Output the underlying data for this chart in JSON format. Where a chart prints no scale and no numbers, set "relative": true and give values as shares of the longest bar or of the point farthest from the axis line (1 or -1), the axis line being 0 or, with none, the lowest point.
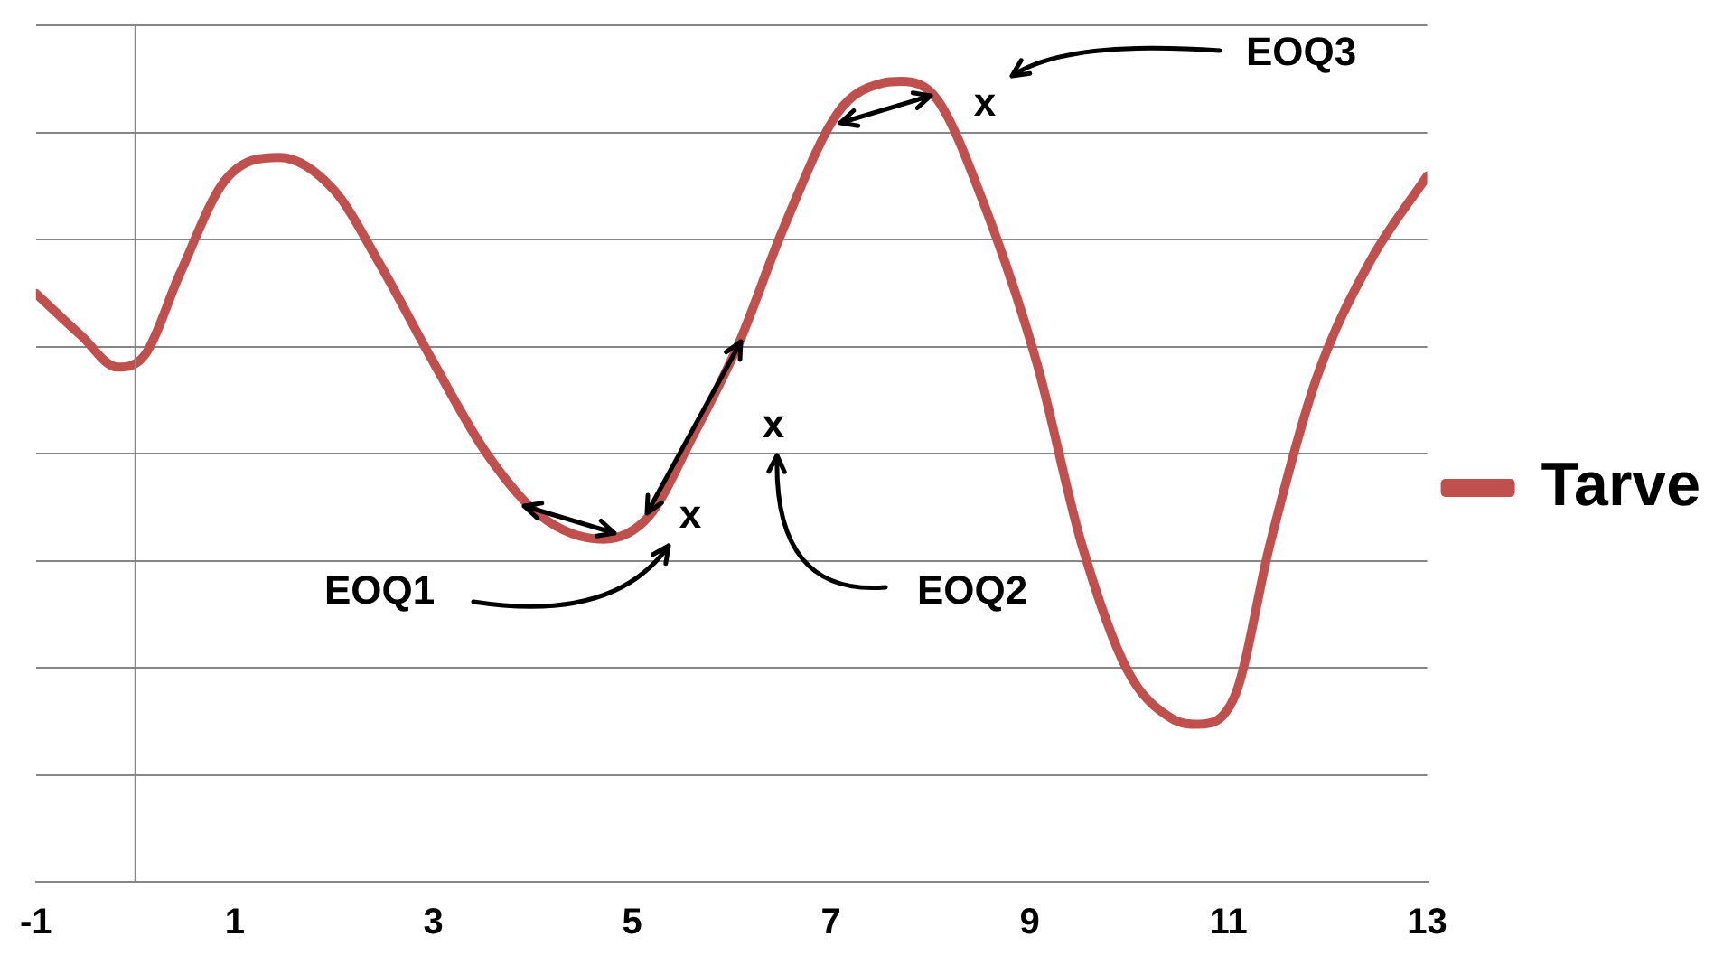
{
  "chart_data": {
    "type": "line",
    "relative": true,
    "x": [
      -1,
      -0.55,
      -0.18,
      0.1,
      0.45,
      0.9,
      1.45,
      2.0,
      2.45,
      3.0,
      3.53,
      4.08,
      4.71,
      5.17,
      5.62,
      6.07,
      6.53,
      7.07,
      7.52,
      7.71,
      8.07,
      8.52,
      9.07,
      9.52,
      9.98,
      10.43,
      10.7,
      11.06,
      11.42,
      11.88,
      12.42,
      13
    ],
    "series": [
      {
        "name": "Tarve",
        "color": "#c0504d",
        "values": [
          0.735,
          0.683,
          0.643,
          0.659,
          0.76,
          0.876,
          0.905,
          0.864,
          0.774,
          0.649,
          0.536,
          0.457,
          0.428,
          0.457,
          0.559,
          0.672,
          0.819,
          0.961,
          0.998,
          1,
          0.977,
          0.853,
          0.649,
          0.423,
          0.265,
          0.204,
          0.197,
          0.231,
          0.423,
          0.627,
          0.774,
          0.882
        ]
      }
    ],
    "xlim": [
      -1,
      13
    ],
    "xticks": [
      -1,
      1,
      3,
      5,
      7,
      9,
      11,
      13
    ],
    "grid": "y",
    "legend": "right",
    "line_style": "solid",
    "marker": "none",
    "annotations": [
      "x",
      "x",
      "x",
      "EOQ1",
      "EOQ2",
      "EOQ3"
    ]
  }
}
